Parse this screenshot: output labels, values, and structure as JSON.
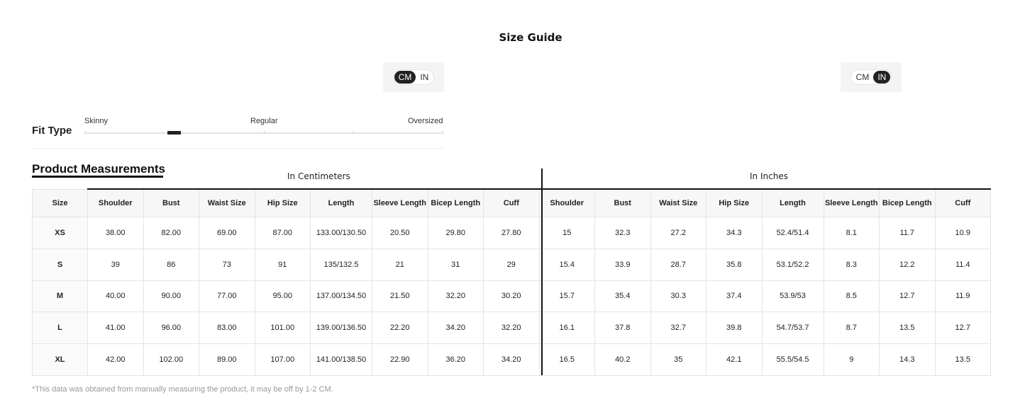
{
  "title": "Size Guide",
  "toggle_left": {
    "cm": "CM",
    "in": "IN",
    "selected": "CM"
  },
  "toggle_right": {
    "cm": "CM",
    "in": "IN",
    "selected": "IN"
  },
  "fit": {
    "label": "Fit Type",
    "skinny": "Skinny",
    "regular": "Regular",
    "oversized": "Oversized",
    "position_fraction": 0.24
  },
  "section_title": "Product Measurements",
  "group_cm": "In Centimeters",
  "group_in": "In Inches",
  "headers": [
    "Size",
    "Shoulder",
    "Bust",
    "Waist Size",
    "Hip Size",
    "Length",
    "Sleeve Length",
    "Bicep Length",
    "Cuff",
    "Shoulder",
    "Bust",
    "Waist Size",
    "Hip Size",
    "Length",
    "Sleeve Length",
    "Bicep Length",
    "Cuff"
  ],
  "rows": [
    [
      "XS",
      "38.00",
      "82.00",
      "69.00",
      "87.00",
      "133.00/130.50",
      "20.50",
      "29.80",
      "27.80",
      "15",
      "32.3",
      "27.2",
      "34.3",
      "52.4/51.4",
      "8.1",
      "11.7",
      "10.9"
    ],
    [
      "S",
      "39",
      "86",
      "73",
      "91",
      "135/132.5",
      "21",
      "31",
      "29",
      "15.4",
      "33.9",
      "28.7",
      "35.8",
      "53.1/52.2",
      "8.3",
      "12.2",
      "11.4"
    ],
    [
      "M",
      "40.00",
      "90.00",
      "77.00",
      "95.00",
      "137.00/134.50",
      "21.50",
      "32.20",
      "30.20",
      "15.7",
      "35.4",
      "30.3",
      "37.4",
      "53.9/53",
      "8.5",
      "12.7",
      "11.9"
    ],
    [
      "L",
      "41.00",
      "96.00",
      "83.00",
      "101.00",
      "139.00/136.50",
      "22.20",
      "34.20",
      "32.20",
      "16.1",
      "37.8",
      "32.7",
      "39.8",
      "54.7/53.7",
      "8.7",
      "13.5",
      "12.7"
    ],
    [
      "XL",
      "42.00",
      "102.00",
      "89.00",
      "107.00",
      "141.00/138.50",
      "22.90",
      "36.20",
      "34.20",
      "16.5",
      "40.2",
      "35",
      "42.1",
      "55.5/54.5",
      "9",
      "14.3",
      "13.5"
    ]
  ],
  "note": "*This data was obtained from manually measuring the product, it may be off by 1-2 CM."
}
